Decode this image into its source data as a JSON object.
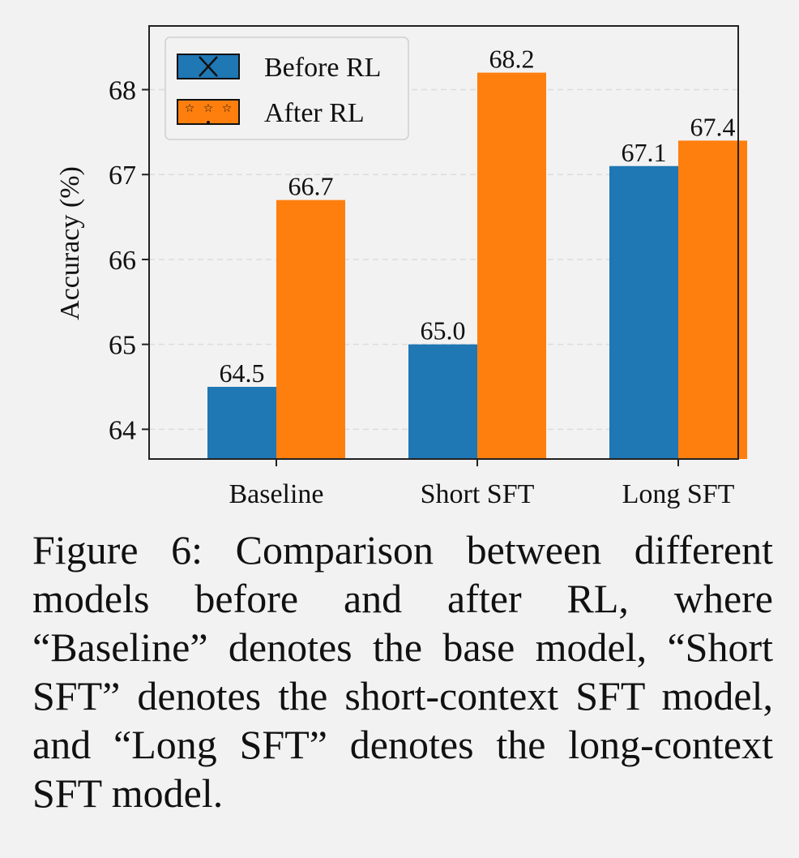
{
  "chart_data": {
    "type": "bar",
    "title": "",
    "xlabel": "",
    "ylabel": "Accuracy (%)",
    "categories": [
      "Baseline",
      "Short SFT",
      "Long SFT"
    ],
    "series": [
      {
        "name": "Before RL",
        "values": [
          64.5,
          65.0,
          67.1
        ],
        "labels": [
          "64.5",
          "65.0",
          "67.1"
        ],
        "color": "#1f77b4",
        "hatch": "x"
      },
      {
        "name": "After RL",
        "values": [
          66.7,
          68.2,
          67.4
        ],
        "labels": [
          "66.7",
          "68.2",
          "67.4"
        ],
        "color": "#ff7f0e",
        "hatch": "*"
      }
    ],
    "ylim": [
      63.65,
      68.75
    ],
    "yticks": [
      "64",
      "65",
      "66",
      "67",
      "68"
    ],
    "grid": "y-dashed",
    "legend_position": "top-left"
  },
  "caption": "Figure 6: Comparison between different models before and after RL, where “Baseline” denotes the base model, “Short SFT” denotes the short-context SFT model, and “Long SFT” denotes the long-context SFT model."
}
